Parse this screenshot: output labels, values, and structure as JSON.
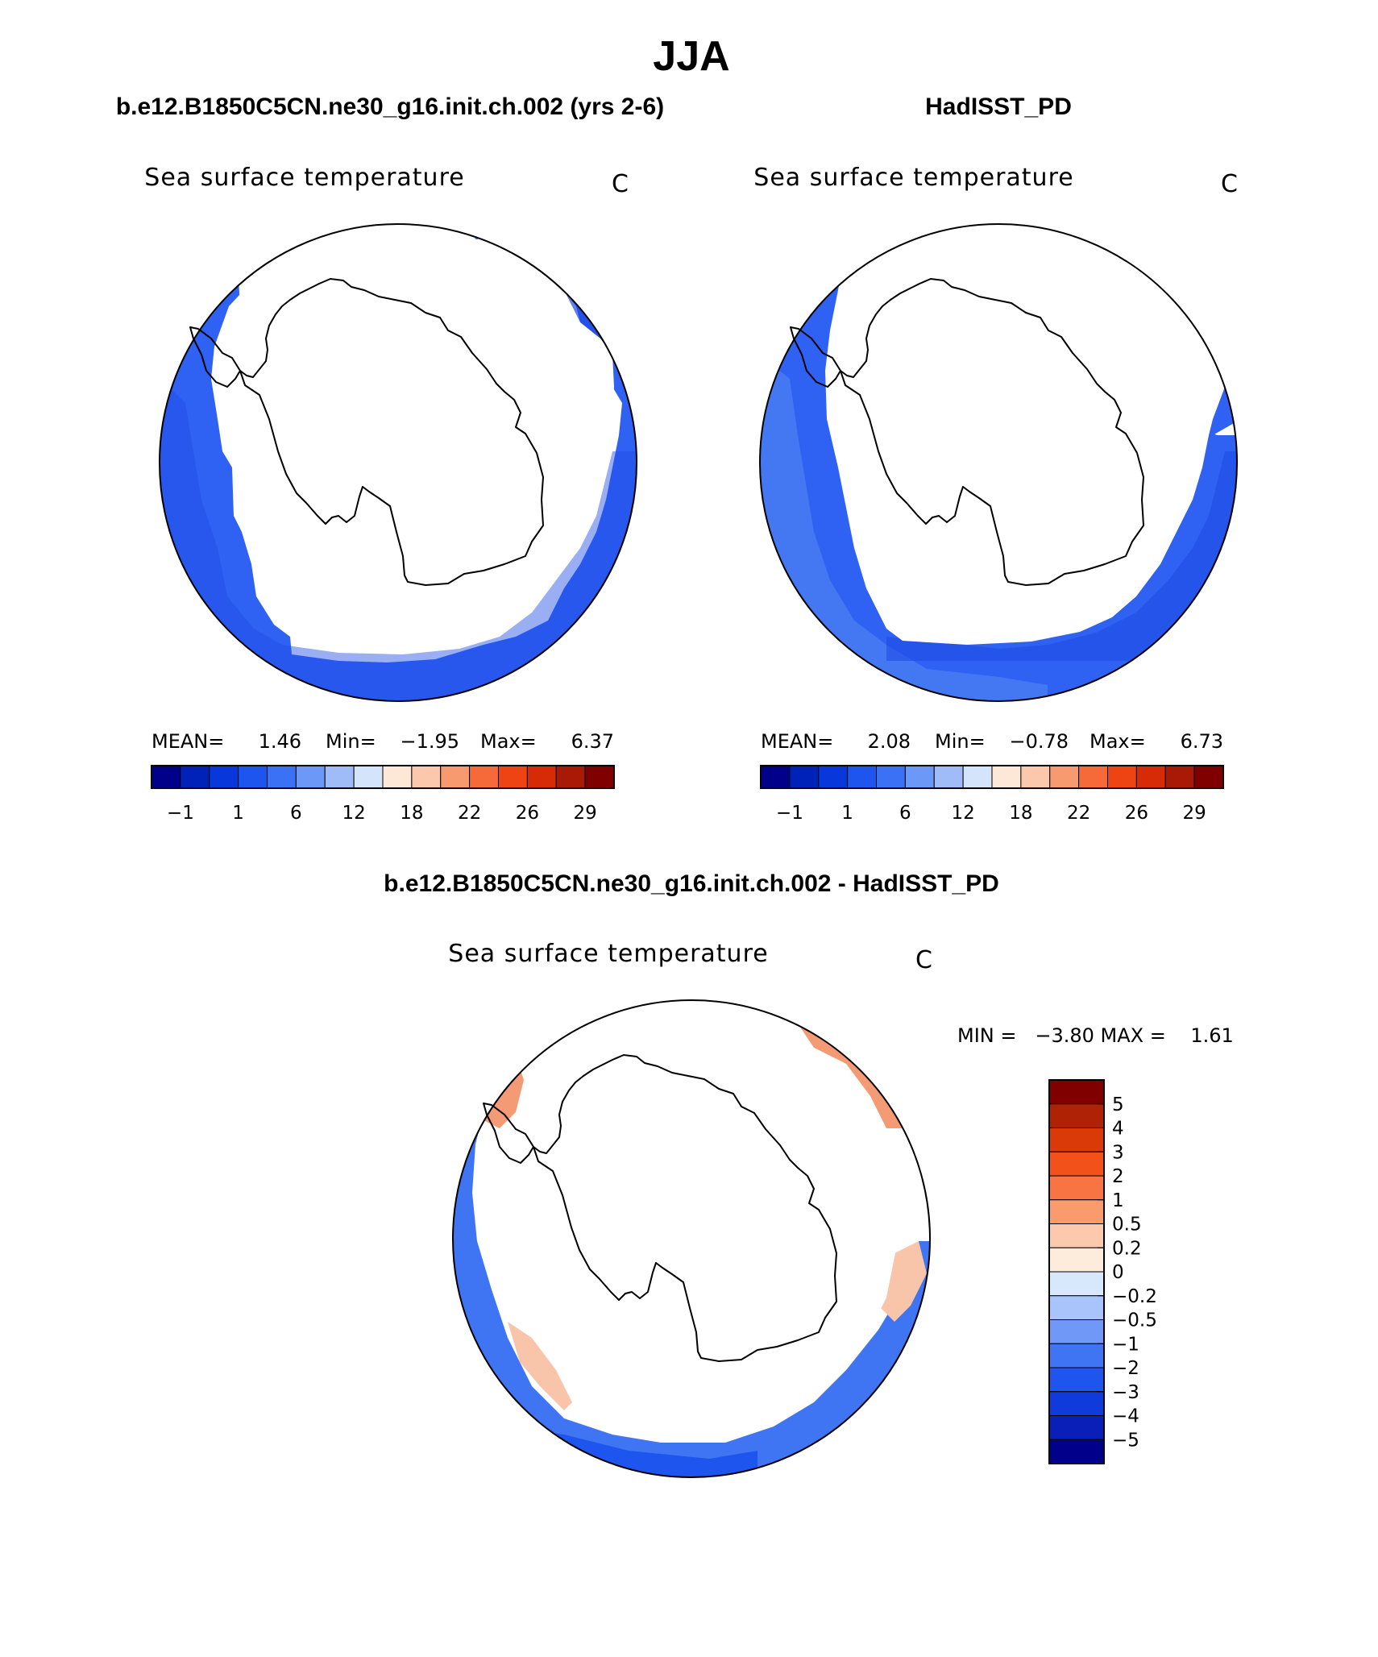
{
  "figure_title": "JJA",
  "colors": {
    "abs_scale": [
      "#00008b",
      "#0022b8",
      "#0838dc",
      "#1f55ef",
      "#3b71f5",
      "#6c98f8",
      "#9fbcf9",
      "#d4e5fb",
      "#fde8d7",
      "#fbc8ae",
      "#f89a70",
      "#f66a3a",
      "#ee4313",
      "#d62b06",
      "#a81a05",
      "#800000"
    ],
    "diff_scale": [
      "#00008b",
      "#0a1fb8",
      "#0f3bdc",
      "#1f55ef",
      "#3f75f3",
      "#6f98f7",
      "#a8c4fa",
      "#d8e8fc",
      "#fdebdc",
      "#fcc9ac",
      "#fa9b6e",
      "#f87543",
      "#f25119",
      "#d93a08",
      "#b02204",
      "#800000"
    ],
    "ocean_deep": "#1f4be6",
    "ocean_mid": "#2f62f2",
    "ocean_light": "#4c80f2",
    "warm_patch": "#f49a74",
    "warm_light": "#f8c5aa"
  },
  "panel_left": {
    "heading": "b.e12.B1850C5CN.ne30_g16.init.ch.002 (yrs 2-6)",
    "map_title": "Sea surface temperature",
    "units": "C",
    "mean_label": "MEAN=",
    "mean_value": "1.46",
    "min_label": "Min=",
    "min_value": "−1.95",
    "max_label": "Max=",
    "max_value": "6.37",
    "colorbar_ticks": [
      "−1",
      "1",
      "6",
      "12",
      "18",
      "22",
      "26",
      "29"
    ]
  },
  "panel_right": {
    "heading": "HadISST_PD",
    "map_title": "Sea surface temperature",
    "units": "C",
    "mean_label": "MEAN=",
    "mean_value": "2.08",
    "min_label": "Min=",
    "min_value": "−0.78",
    "max_label": "Max=",
    "max_value": "6.73",
    "colorbar_ticks": [
      "−1",
      "1",
      "6",
      "12",
      "18",
      "22",
      "26",
      "29"
    ]
  },
  "panel_diff": {
    "heading": "b.e12.B1850C5CN.ne30_g16.init.ch.002 - HadISST_PD",
    "map_title": "Sea surface temperature",
    "units": "C",
    "minmax_text": "MIN =   −3.80 MAX =    1.61",
    "colorbar_ticks": [
      "5",
      "4",
      "3",
      "2",
      "1",
      "0.5",
      "0.2",
      "0",
      "−0.2",
      "−0.5",
      "−1",
      "−2",
      "−3",
      "−4",
      "−5"
    ]
  }
}
